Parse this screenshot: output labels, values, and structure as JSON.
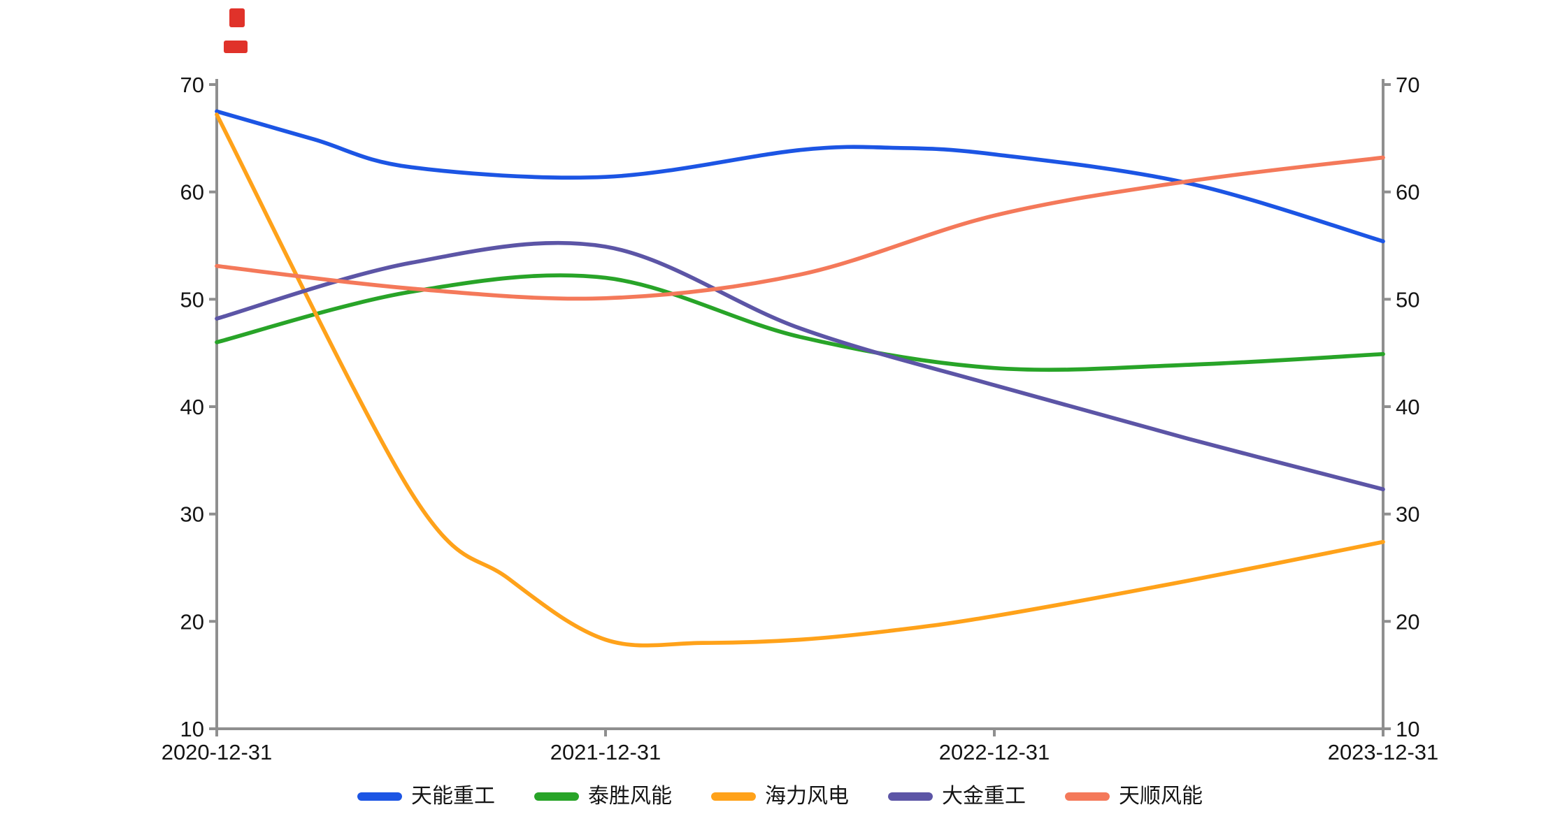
{
  "page": {
    "background": "#ffffff",
    "corner_marks": {
      "color": "#e0322a"
    }
  },
  "chart_data": {
    "type": "line",
    "smooth": true,
    "grid": false,
    "legend_position": "bottom",
    "axis_color": "#8f8f8f",
    "tick_label_color": "#141414",
    "ylim": [
      10,
      70
    ],
    "y_ticks": [
      10,
      20,
      30,
      40,
      50,
      60,
      70
    ],
    "y_axis_sides": [
      "left",
      "right"
    ],
    "x_max": 6,
    "x_tick_positions": [
      0,
      2,
      4,
      6
    ],
    "x_tick_labels": [
      "2020-12-31",
      "2021-12-31",
      "2022-12-31",
      "2023-12-31"
    ],
    "series": [
      {
        "name": "天能重工",
        "color": "#1c55e4",
        "x": [
          0,
          0.5,
          1,
          2,
          3,
          3.5,
          4,
          5,
          6
        ],
        "values": [
          67.5,
          64.9,
          62.3,
          61.4,
          63.9,
          64.1,
          63.5,
          60.8,
          55.4
        ]
      },
      {
        "name": "泰胜风能",
        "color": "#28a428",
        "x": [
          0,
          1,
          2,
          3,
          4,
          5,
          6
        ],
        "values": [
          46.0,
          50.7,
          52.0,
          46.5,
          43.6,
          43.9,
          44.9
        ]
      },
      {
        "name": "海力风电",
        "color": "#ffa21a",
        "x": [
          0,
          1,
          1.5,
          2,
          2.5,
          3,
          3.5,
          4,
          5,
          6
        ],
        "values": [
          67.2,
          32.0,
          24.0,
          18.3,
          18.0,
          18.3,
          19.2,
          20.5,
          23.8,
          27.4
        ]
      },
      {
        "name": "大金重工",
        "color": "#5c55a6",
        "x": [
          0,
          1,
          2,
          3,
          4,
          5,
          6
        ],
        "values": [
          48.2,
          53.4,
          54.9,
          47.3,
          42.0,
          37.0,
          32.3
        ]
      },
      {
        "name": "天顺风能",
        "color": "#f4795a",
        "x": [
          0,
          1,
          2,
          3,
          4,
          5,
          6
        ],
        "values": [
          53.1,
          51.0,
          50.1,
          52.3,
          57.8,
          61.0,
          63.2
        ]
      }
    ]
  }
}
